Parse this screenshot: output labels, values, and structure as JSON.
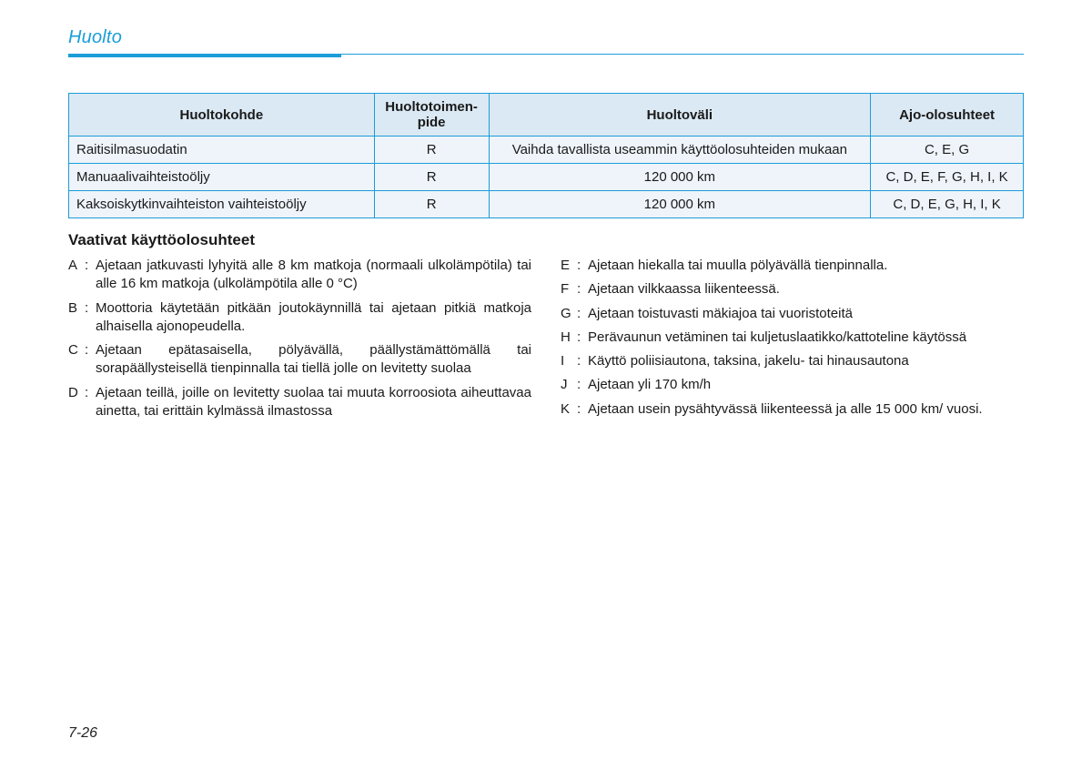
{
  "header": {
    "title": "Huolto"
  },
  "table": {
    "columns": [
      "Huoltokohde",
      "Huoltotoimen-pide",
      "Huoltoväli",
      "Ajo-olosuhteet"
    ],
    "rows": [
      {
        "item": "Raitisilmasuodatin",
        "action": "R",
        "interval": "Vaihda tavallista useammin käyttöolosuhteiden mukaan",
        "conditions": "C, E, G"
      },
      {
        "item": "Manuaalivaihteistoöljy",
        "action": "R",
        "interval": "120 000 km",
        "conditions": "C, D, E, F, G, H, I, K"
      },
      {
        "item": "Kaksoiskytkinvaihteiston vaihteistoöljy",
        "action": "R",
        "interval": "120 000 km",
        "conditions": "C, D, E, G, H, I, K"
      }
    ],
    "header_bg": "#dbe9f4",
    "cell_bg": "#eef4fa",
    "border_color": "#1a9dd9"
  },
  "subheading": "Vaativat käyttöolosuhteet",
  "conditions_left": [
    {
      "label": "A",
      "text": "Ajetaan jatkuvasti lyhyitä alle 8 km matkoja (normaali ulkolämpötila) tai alle 16 km matkoja (ulkolämpötila alle 0 °C)"
    },
    {
      "label": "B",
      "text": "Moottoria käytetään pitkään joutokäynnillä tai ajetaan pitkiä matkoja alhaisella ajonopeudella."
    },
    {
      "label": "C",
      "text": "Ajetaan epätasaisella, pölyävällä, päällystämättömällä tai sorapäällysteisellä tienpinnalla tai tiellä jolle on levitetty suolaa"
    },
    {
      "label": "D",
      "text": "Ajetaan teillä, joille on levitetty suolaa tai muuta korroosiota aiheuttavaa ainetta, tai erittäin kylmässä ilmastossa"
    }
  ],
  "conditions_right": [
    {
      "label": "E",
      "text": "Ajetaan hiekalla tai muulla pölyävällä tienpinnalla."
    },
    {
      "label": "F",
      "text": "Ajetaan vilkkaassa liikenteessä."
    },
    {
      "label": "G",
      "text": "Ajetaan toistuvasti mäkiajoa tai vuoristoteitä"
    },
    {
      "label": "H",
      "text": "Perävaunun vetäminen tai kuljetuslaatikko/kattoteline käytössä"
    },
    {
      "label": "I",
      "text": "Käyttö poliisiautona, taksina, jakelu- tai hinausautona"
    },
    {
      "label": "J",
      "text": "Ajetaan yli 170 km/h"
    },
    {
      "label": "K",
      "text": "Ajetaan usein pysähtyvässä liikenteessä ja alle 15 000 km/ vuosi."
    }
  ],
  "page_number": "7-26",
  "colors": {
    "accent": "#1a9dd9",
    "text": "#1a1a1a",
    "background": "#ffffff"
  },
  "fonts": {
    "title_size_pt": 20,
    "body_size_pt": 15,
    "subheading_size_pt": 17
  }
}
